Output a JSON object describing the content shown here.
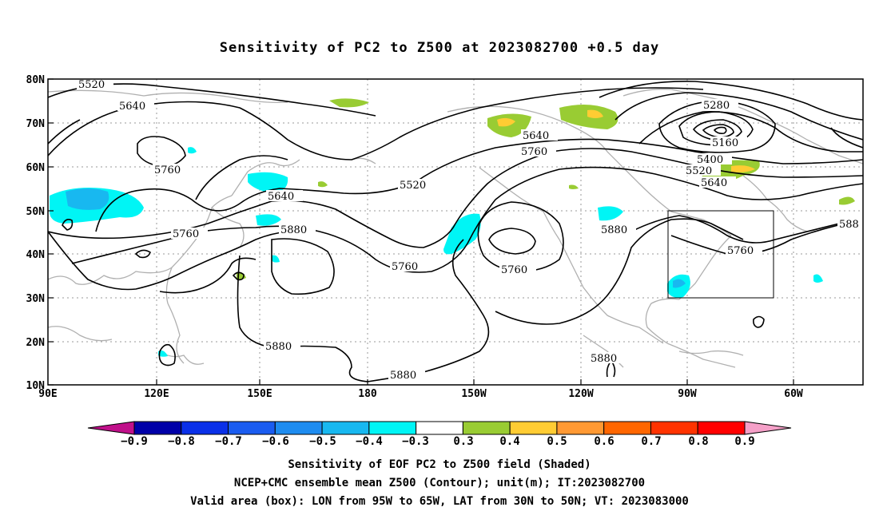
{
  "title": "Sensitivity of PC2 to Z500 at 2023082700 +0.5 day",
  "lat_labels": [
    "80N",
    "70N",
    "60N",
    "50N",
    "40N",
    "30N",
    "20N",
    "10N"
  ],
  "lon_labels": [
    "90E",
    "120E",
    "150E",
    "180",
    "150W",
    "120W",
    "90W",
    "60W"
  ],
  "contour_labels": {
    "c5520a": "5520",
    "c5640a": "5640",
    "c5760a": "5760",
    "c5640b": "5640",
    "c5760b": "5760",
    "c5880a": "5880",
    "c5520b": "5520",
    "c5640c": "5640",
    "c5760c": "5760",
    "c5760d": "5760",
    "c5760e": "5760",
    "c5880b": "5880",
    "c5280": "5280",
    "c5160": "5160",
    "c5400": "5400",
    "c5520c": "5520",
    "c5640d": "5640",
    "c5760f": "5760",
    "c588": "588",
    "c5880c": "5880",
    "c5880d": "5880",
    "c5880e": "5880"
  },
  "colorbar": {
    "labels": [
      "−0.9",
      "−0.8",
      "−0.7",
      "−0.6",
      "−0.5",
      "−0.4",
      "−0.3",
      "0.3",
      "0.4",
      "0.5",
      "0.6",
      "0.7",
      "0.8",
      "0.9"
    ],
    "colors": [
      "#0000a8",
      "#0a30e8",
      "#1a5cf0",
      "#1e8cf0",
      "#18b8f0",
      "#00f5f5",
      "#ffffff",
      "#99cc33",
      "#ffcc33",
      "#ff9933",
      "#ff6600",
      "#ff3300",
      "#ff0000"
    ],
    "left_tip_color": "#c0108a",
    "right_tip_color": "#f5a0c8"
  },
  "shading_colors": {
    "cyan": "#00f5f5",
    "light_blue": "#18b8f0",
    "green": "#99cc33",
    "yellow": "#ffcc33"
  },
  "caption_lines": [
    "Sensitivity of EOF PC2 to Z500 field (Shaded)",
    "NCEP+CMC ensemble mean Z500 (Contour); unit(m); IT:2023082700",
    "Valid area (box): LON from 95W to 65W, LAT from 30N to 50N; VT: 2023083000"
  ]
}
